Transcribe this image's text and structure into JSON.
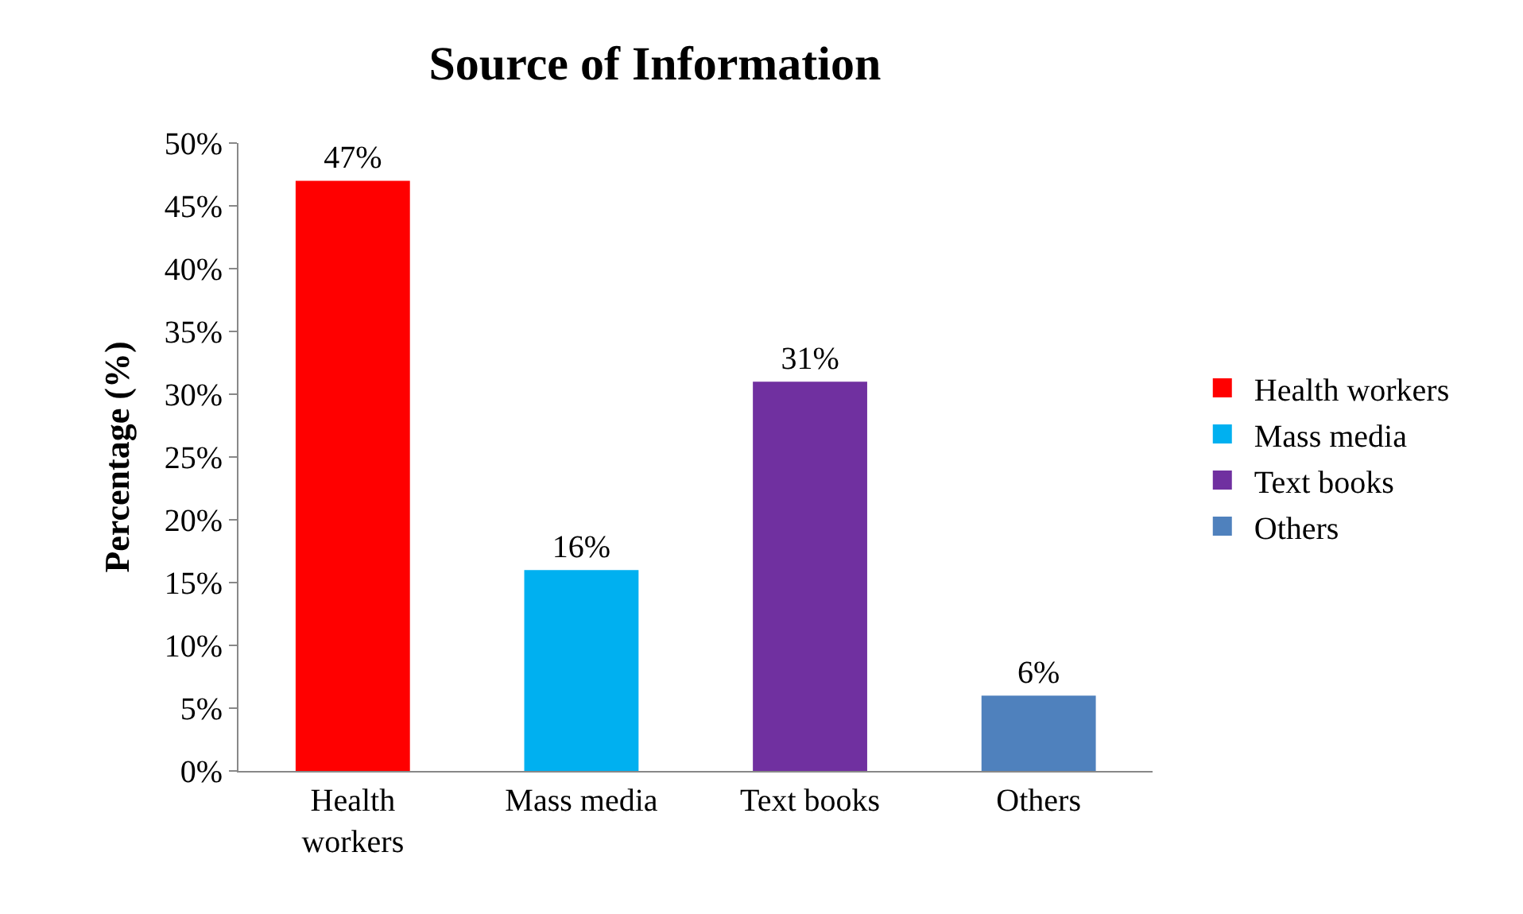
{
  "chart_data": {
    "type": "bar",
    "title": "Source of Information",
    "ylabel": "Percentage (%)",
    "categories": [
      "Health workers",
      "Mass media",
      "Text books",
      "Others"
    ],
    "series": [
      {
        "name": "Health workers",
        "color": "#ff0000",
        "values": [
          47,
          null,
          null,
          null
        ],
        "value_labels": [
          "47%",
          null,
          null,
          null
        ]
      },
      {
        "name": "Mass media",
        "color": "#00b0f0",
        "values": [
          null,
          16,
          null,
          null
        ],
        "value_labels": [
          null,
          "16%",
          null,
          null
        ]
      },
      {
        "name": "Text books",
        "color": "#7030a0",
        "values": [
          null,
          null,
          31,
          null
        ],
        "value_labels": [
          null,
          null,
          "31%",
          null
        ]
      },
      {
        "name": "Others",
        "color": "#4f81bd",
        "values": [
          null,
          null,
          null,
          6
        ],
        "value_labels": [
          null,
          null,
          null,
          "6%"
        ]
      }
    ],
    "ylim": [
      0,
      50
    ],
    "yticks": [
      {
        "value": 0,
        "label": "0%"
      },
      {
        "value": 5,
        "label": "5%"
      },
      {
        "value": 10,
        "label": "10%"
      },
      {
        "value": 15,
        "label": "15%"
      },
      {
        "value": 20,
        "label": "20%"
      },
      {
        "value": 25,
        "label": "25%"
      },
      {
        "value": 30,
        "label": "30%"
      },
      {
        "value": 35,
        "label": "35%"
      },
      {
        "value": 40,
        "label": "40%"
      },
      {
        "value": 45,
        "label": "45%"
      },
      {
        "value": 50,
        "label": "50%"
      }
    ],
    "legend": "right"
  }
}
